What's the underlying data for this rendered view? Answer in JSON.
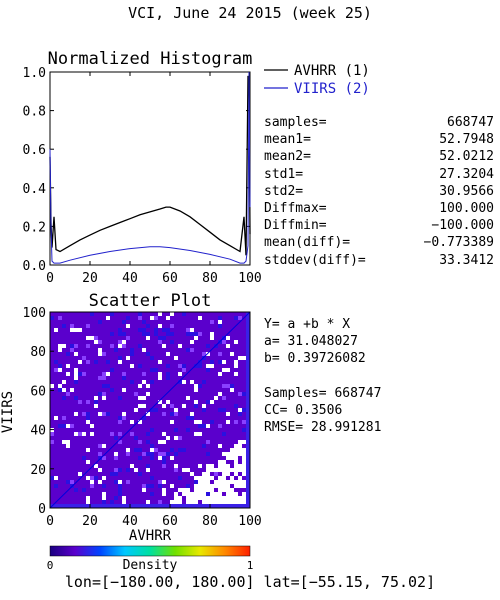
{
  "title": "VCI,  June 24 2015 (week 25)",
  "legend": {
    "items": [
      {
        "label": "AVHRR (1)",
        "color": "#000000"
      },
      {
        "label": "VIIRS (2)",
        "color": "#2222cc"
      }
    ]
  },
  "stats": [
    {
      "label": "samples=",
      "value": "668747"
    },
    {
      "label": "mean1=",
      "value": "52.7948"
    },
    {
      "label": "mean2=",
      "value": "52.0212"
    },
    {
      "label": "std1=",
      "value": "27.3204"
    },
    {
      "label": "std2=",
      "value": "30.9566"
    },
    {
      "label": "Diffmax=",
      "value": "100.000"
    },
    {
      "label": "Diffmin=",
      "value": "−100.000"
    },
    {
      "label": "mean(diff)=",
      "value": "−0.773389"
    },
    {
      "label": "stddev(diff)=",
      "value": "33.3412"
    }
  ],
  "regression": {
    "lines": [
      "Y= a +b * X",
      "a= 31.048027",
      "b= 0.39726082",
      "",
      "Samples= 668747",
      "CC=  0.3506",
      "RMSE= 28.991281"
    ]
  },
  "colorbar": {
    "min_label": "0",
    "label": "Density",
    "max_label": "1",
    "stops": [
      "#1a0080",
      "#5a00cc",
      "#0044ff",
      "#00c8ff",
      "#00e0a0",
      "#70e000",
      "#e8e800",
      "#ff8800",
      "#ff2000"
    ]
  },
  "footer": "lon=[−180.00, 180.00] lat=[−55.15, 75.02]",
  "chart_data": [
    {
      "type": "line",
      "title": "Normalized Histogram",
      "xlabel": "",
      "ylabel": "",
      "xlim": [
        0,
        100
      ],
      "ylim": [
        0,
        1
      ],
      "x_ticks": [
        0,
        20,
        40,
        60,
        80,
        100
      ],
      "y_ticks": [
        "0.0",
        "0.2",
        "0.4",
        "0.6",
        "0.8",
        "1.0"
      ],
      "series": [
        {
          "name": "AVHRR (1)",
          "color": "#000000",
          "x": [
            0,
            0.5,
            1,
            2,
            3,
            5,
            10,
            15,
            20,
            25,
            30,
            35,
            40,
            45,
            50,
            55,
            58,
            60,
            65,
            70,
            75,
            80,
            85,
            90,
            95,
            97,
            98,
            99,
            99.5,
            100
          ],
          "y": [
            0.56,
            0.22,
            0.09,
            0.25,
            0.08,
            0.07,
            0.1,
            0.13,
            0.155,
            0.18,
            0.2,
            0.22,
            0.24,
            0.26,
            0.275,
            0.29,
            0.3,
            0.3,
            0.28,
            0.25,
            0.21,
            0.17,
            0.13,
            0.1,
            0.07,
            0.25,
            0.05,
            0.98,
            0.95,
            0.16
          ]
        },
        {
          "name": "VIIRS (2)",
          "color": "#2222cc",
          "x": [
            0,
            0.5,
            1,
            2,
            3,
            5,
            10,
            20,
            30,
            40,
            50,
            55,
            60,
            70,
            80,
            90,
            95,
            97,
            98,
            99,
            99.5,
            100
          ],
          "y": [
            0.6,
            0.2,
            0.02,
            0.01,
            0.01,
            0.01,
            0.025,
            0.05,
            0.07,
            0.085,
            0.095,
            0.095,
            0.09,
            0.075,
            0.055,
            0.03,
            0.01,
            0.01,
            0.02,
            0.1,
            1.0,
            0.3
          ]
        }
      ]
    },
    {
      "type": "scatter",
      "title": "Scatter Plot",
      "xlabel": "AVHRR",
      "ylabel": "VIIRS",
      "xlim": [
        0,
        100
      ],
      "ylim": [
        0,
        100
      ],
      "x_ticks": [
        0,
        20,
        40,
        60,
        80,
        100
      ],
      "y_ticks": [
        0,
        20,
        40,
        60,
        80,
        100
      ],
      "density_colorbar": true,
      "diagonal_line": {
        "from": [
          0,
          0
        ],
        "to": [
          100,
          100
        ],
        "color": "#0000dd"
      },
      "regression": {
        "a": 31.048027,
        "b": 0.39726082
      },
      "samples": 668747
    }
  ]
}
